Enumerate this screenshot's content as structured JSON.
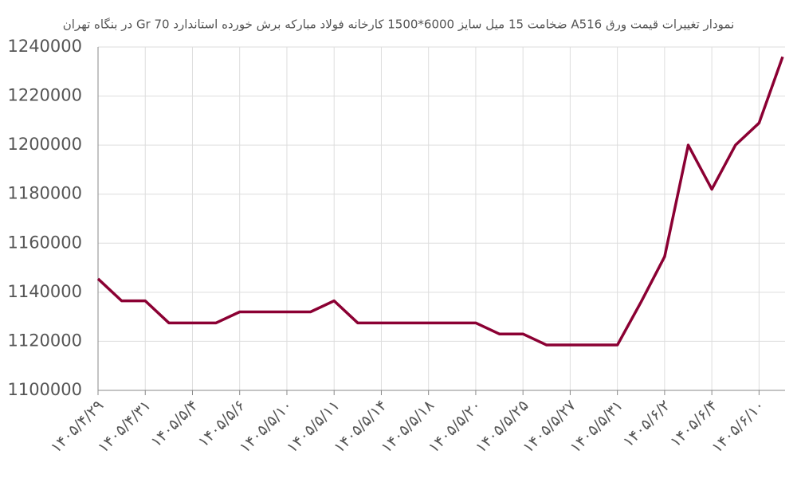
{
  "chart_data": {
    "type": "line",
    "title": "نمودار تغییرات قیمت ورق A516 ضخامت 15 میل سایز 6000*1500 کارخانه فولاد مبارکه برش خورده استاندارد Gr 70 در بنگاه تهران",
    "categories": [
      "۱۴۰۵/۴/۲۹",
      null,
      "۱۴۰۵/۴/۳۱",
      null,
      "۱۴۰۵/۵/۴",
      null,
      "۱۴۰۵/۵/۶",
      null,
      "۱۴۰۵/۵/۱۰",
      null,
      "۱۴۰۵/۵/۱۱",
      null,
      "۱۴۰۵/۵/۱۴",
      null,
      "۱۴۰۵/۵/۱۸",
      null,
      "۱۴۰۵/۵/۲۰",
      null,
      "۱۴۰۵/۵/۲۵",
      null,
      "۱۴۰۵/۵/۲۷",
      null,
      "۱۴۰۵/۵/۳۱",
      null,
      "۱۴۰۵/۶/۲",
      null,
      "۱۴۰۵/۶/۴",
      null,
      "۱۴۰۵/۶/۱۰",
      null
    ],
    "series": [
      {
        "color": "#8b0033",
        "values": [
          1145500,
          1136500,
          1136500,
          1127500,
          1127500,
          1127500,
          1132000,
          1132000,
          1132000,
          1132000,
          1136500,
          1127500,
          1127500,
          1127500,
          1127500,
          1127500,
          1127500,
          1123000,
          1123000,
          1118500,
          1118500,
          1118500,
          1118500,
          1136000,
          1154500,
          1200000,
          1182000,
          1200000,
          1209000,
          1236000
        ]
      }
    ],
    "ylim": [
      1100000,
      1240000
    ],
    "yticks": [
      1100000,
      1120000,
      1140000,
      1160000,
      1180000,
      1200000,
      1220000,
      1240000
    ],
    "grid": true
  }
}
